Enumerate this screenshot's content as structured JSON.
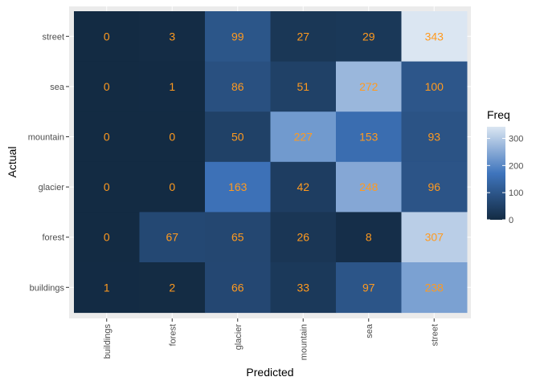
{
  "chart_data": {
    "type": "heatmap",
    "xlabel": "Predicted",
    "ylabel": "Actual",
    "x_categories": [
      "buildings",
      "forest",
      "glacier",
      "mountain",
      "sea",
      "street"
    ],
    "y_categories": [
      "street",
      "sea",
      "mountain",
      "glacier",
      "forest",
      "buildings"
    ],
    "values": [
      [
        0,
        3,
        99,
        27,
        29,
        343
      ],
      [
        0,
        1,
        86,
        51,
        272,
        100
      ],
      [
        0,
        0,
        50,
        227,
        153,
        93
      ],
      [
        0,
        0,
        163,
        42,
        248,
        96
      ],
      [
        0,
        67,
        65,
        26,
        8,
        307
      ],
      [
        1,
        2,
        66,
        33,
        97,
        238
      ]
    ],
    "legend": {
      "title": "Freq",
      "ticks": [
        0,
        100,
        200,
        300
      ],
      "range": [
        0,
        343
      ],
      "placement": "right"
    },
    "colors": {
      "low": "#132b43",
      "mid": "#3f75bd",
      "high": "#dbe6f2",
      "cell_text": "#ff9a1f",
      "panel_bg": "#ebebeb",
      "grid": "#ffffff"
    },
    "grid": true
  }
}
